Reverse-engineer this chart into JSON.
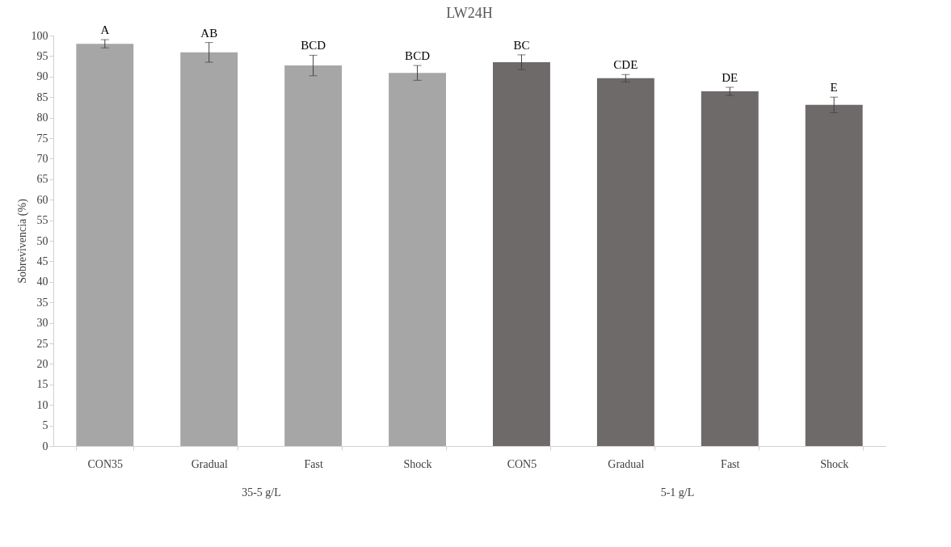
{
  "chart_data": {
    "type": "bar",
    "title": "LW24H",
    "ylabel": "Sobrevivencia (%)",
    "categories": [
      "CON35",
      "Gradual",
      "Fast",
      "Shock",
      "CON5",
      "Gradual",
      "Fast",
      "Shock"
    ],
    "values": [
      98.0,
      95.9,
      92.7,
      90.9,
      93.5,
      89.6,
      86.4,
      83.1
    ],
    "errors": [
      1.0,
      2.4,
      2.5,
      1.8,
      1.8,
      0.9,
      1.0,
      1.9
    ],
    "value_labels": [
      "A",
      "AB",
      "BCD",
      "BCD",
      "BC",
      "CDE",
      "DE",
      "E"
    ],
    "colors": [
      "#a6a6a6",
      "#a6a6a6",
      "#a6a6a6",
      "#a6a6a6",
      "#6e6a6a",
      "#6e6a6a",
      "#6e6a6a",
      "#6e6a6a"
    ],
    "ylim": [
      0,
      100
    ],
    "yticks": [
      0,
      5,
      10,
      15,
      20,
      25,
      30,
      35,
      40,
      45,
      50,
      55,
      60,
      65,
      70,
      75,
      80,
      85,
      90,
      95,
      100
    ],
    "grid": false,
    "legend": false,
    "annotations": [
      "35-5 g/L",
      "5-1 g/L"
    ]
  }
}
